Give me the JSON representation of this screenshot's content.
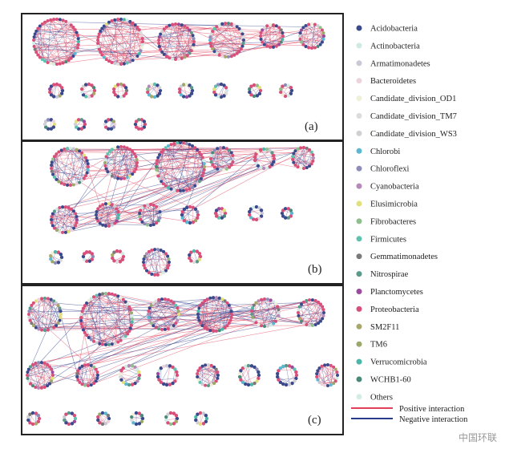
{
  "panels": [
    {
      "label": "(a)"
    },
    {
      "label": "(b)"
    },
    {
      "label": "(c)"
    }
  ],
  "legend": {
    "items": [
      {
        "label": "Acidobacteria",
        "color": "#3b4a8c"
      },
      {
        "label": "Actinobacteria",
        "color": "#cfe9e4"
      },
      {
        "label": "Armatimonadetes",
        "color": "#c9c9d6"
      },
      {
        "label": "Bacteroidetes",
        "color": "#ecd3dc"
      },
      {
        "label": "Candidate_division_OD1",
        "color": "#f0f0d8"
      },
      {
        "label": "Candidate_division_TM7",
        "color": "#dcdcdc"
      },
      {
        "label": "Candidate_division_WS3",
        "color": "#d0d0d4"
      },
      {
        "label": "Chlorobi",
        "color": "#5bb8d0"
      },
      {
        "label": "Chloroflexi",
        "color": "#8e8cb8"
      },
      {
        "label": "Cyanobacteria",
        "color": "#b58ab8"
      },
      {
        "label": "Elusimicrobia",
        "color": "#e2e07a"
      },
      {
        "label": "Fibrobacteres",
        "color": "#8fbf8c"
      },
      {
        "label": "Firmicutes",
        "color": "#5fc2b0"
      },
      {
        "label": "Gemmatimonadetes",
        "color": "#7a7a7a"
      },
      {
        "label": "Nitrospirae",
        "color": "#5a9a8a"
      },
      {
        "label": "Planctomycetes",
        "color": "#9a4a9a"
      },
      {
        "label": "Proteobacteria",
        "color": "#d8507a"
      },
      {
        "label": "SM2F11",
        "color": "#a8a86a"
      },
      {
        "label": "TM6",
        "color": "#9aa86a"
      },
      {
        "label": "Verrucomicrobia",
        "color": "#4ab8a8"
      },
      {
        "label": "WCHB1-60",
        "color": "#4a8a7a"
      },
      {
        "label": "Others",
        "color": "#d4ece6"
      }
    ],
    "lines": [
      {
        "label": "Positive interaction",
        "color": "#e0405a"
      },
      {
        "label": "Negative interaction",
        "color": "#2a3a8a"
      }
    ]
  },
  "watermark": "中国环联"
}
